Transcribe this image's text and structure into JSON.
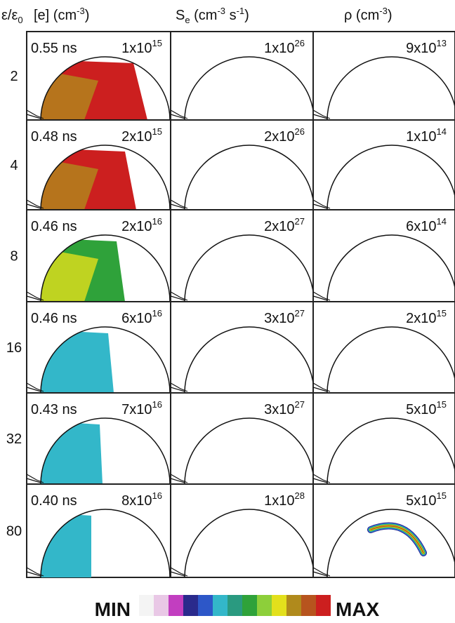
{
  "header": {
    "row_label": [
      {
        "text": "ε/ε"
      },
      {
        "sub": "0"
      }
    ],
    "columns": [
      [
        {
          "text": "[e] (cm"
        },
        {
          "sup": "-3"
        },
        {
          "text": ")"
        }
      ],
      [
        {
          "text": "S"
        },
        {
          "sub": "e"
        },
        {
          "text": " (cm"
        },
        {
          "sup": "-3"
        },
        {
          "text": " s"
        },
        {
          "sup": "-1"
        },
        {
          "text": ")"
        }
      ],
      [
        {
          "text": "ρ (cm"
        },
        {
          "sup": "-3"
        },
        {
          "text": ")"
        }
      ]
    ]
  },
  "rows": [
    {
      "label": "2",
      "time": "0.55 ns",
      "max": [
        {
          "base": "1x10",
          "exp": "15"
        },
        {
          "base": "1x10",
          "exp": "26"
        },
        {
          "base": "9x10",
          "exp": "13"
        }
      ]
    },
    {
      "label": "4",
      "time": "0.48 ns",
      "max": [
        {
          "base": "2x10",
          "exp": "15"
        },
        {
          "base": "2x10",
          "exp": "26"
        },
        {
          "base": "1x10",
          "exp": "14"
        }
      ]
    },
    {
      "label": "8",
      "time": "0.46 ns",
      "max": [
        {
          "base": "2x10",
          "exp": "16"
        },
        {
          "base": "2x10",
          "exp": "27"
        },
        {
          "base": "6x10",
          "exp": "14"
        }
      ]
    },
    {
      "label": "16",
      "time": "0.46 ns",
      "max": [
        {
          "base": "6x10",
          "exp": "16"
        },
        {
          "base": "3x10",
          "exp": "27"
        },
        {
          "base": "2x10",
          "exp": "15"
        }
      ]
    },
    {
      "label": "32",
      "time": "0.43 ns",
      "max": [
        {
          "base": "7x10",
          "exp": "16"
        },
        {
          "base": "3x10",
          "exp": "27"
        },
        {
          "base": "5x10",
          "exp": "15"
        }
      ]
    },
    {
      "label": "80",
      "time": "0.40 ns",
      "max": [
        {
          "base": "8x10",
          "exp": "16"
        },
        {
          "base": "1x10",
          "exp": "28"
        },
        {
          "base": "5x10",
          "exp": "15"
        }
      ]
    }
  ],
  "colorbar": {
    "min": "MIN",
    "max": "MAX"
  }
}
